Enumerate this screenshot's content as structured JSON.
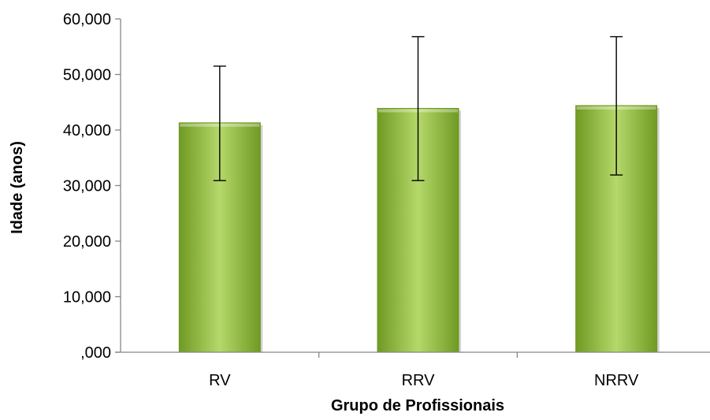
{
  "chart_data": {
    "type": "bar",
    "title": "",
    "xlabel": "Grupo de Profissionais",
    "ylabel": "Idade (anos)",
    "categories": [
      "RV",
      "RRV",
      "NRRV"
    ],
    "values": [
      41.3,
      43.9,
      44.4
    ],
    "error_bars": [
      {
        "low": 30.9,
        "high": 51.5
      },
      {
        "low": 30.9,
        "high": 56.8
      },
      {
        "low": 31.9,
        "high": 56.8
      }
    ],
    "ylim": [
      0,
      60
    ],
    "yticks": [
      {
        "value": 0,
        "label": ",000"
      },
      {
        "value": 10,
        "label": "10,000"
      },
      {
        "value": 20,
        "label": "20,000"
      },
      {
        "value": 30,
        "label": "30,000"
      },
      {
        "value": 40,
        "label": "40,000"
      },
      {
        "value": 50,
        "label": "50,000"
      },
      {
        "value": 60,
        "label": "60,000"
      }
    ],
    "grid": false,
    "legend": "none",
    "bar_color": "#92c13e",
    "bar_color_dark": "#6f9a23",
    "bar_color_light": "#b5d86a",
    "error_bar_color": "#000000"
  }
}
